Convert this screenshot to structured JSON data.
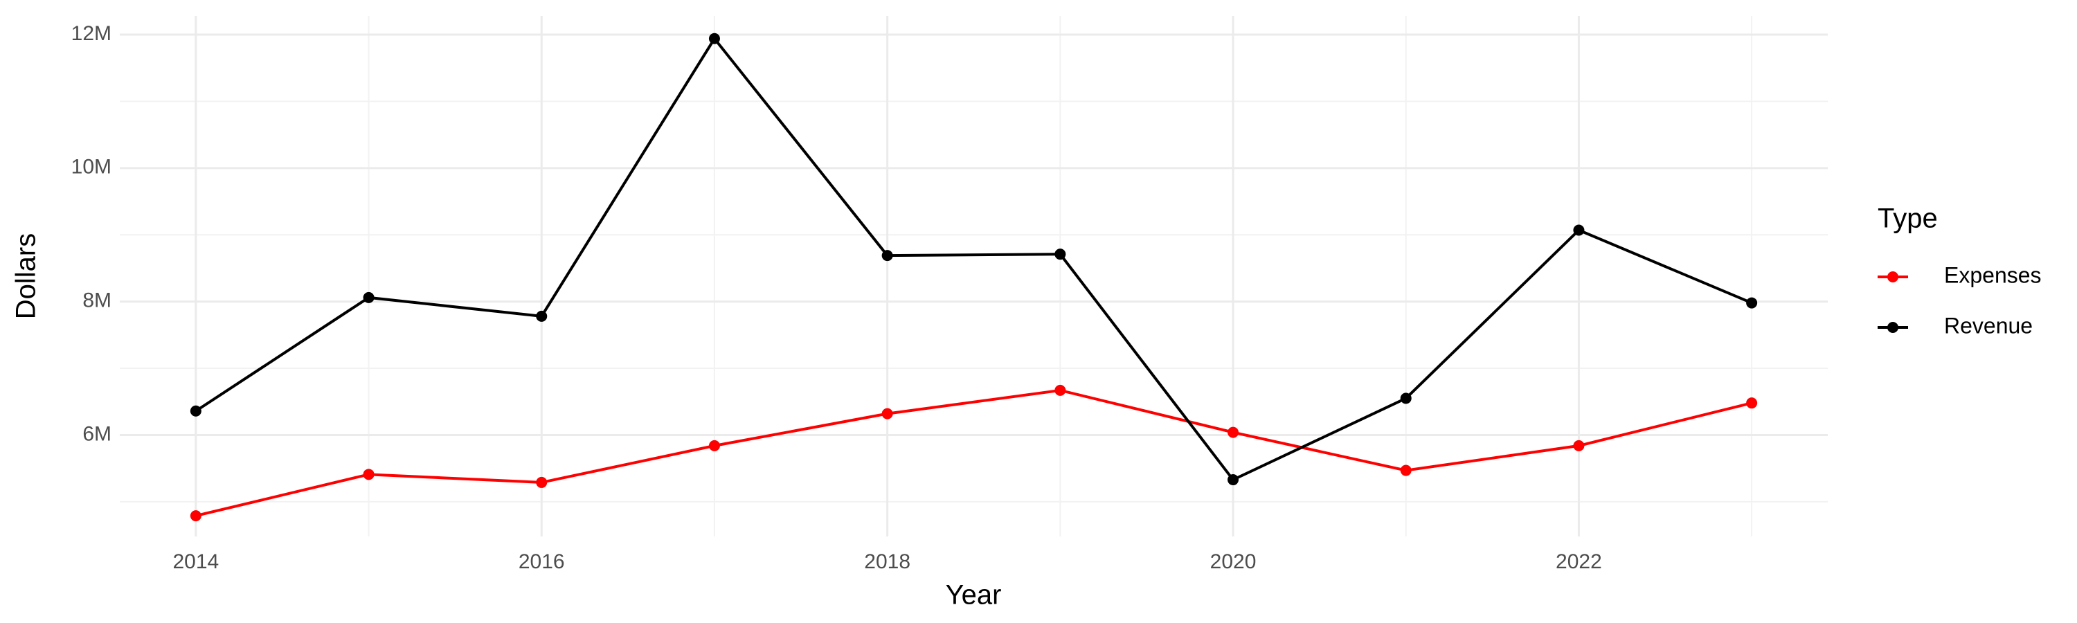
{
  "chart_data": {
    "type": "line",
    "x_label": "Year",
    "y_label": "Dollars",
    "x": [
      2014,
      2015,
      2016,
      2017,
      2018,
      2019,
      2020,
      2021,
      2022,
      2023
    ],
    "series": [
      {
        "name": "Expenses",
        "color": "#ff0000",
        "values": [
          4790000,
          5410000,
          5290000,
          5840000,
          6320000,
          6670000,
          6040000,
          5470000,
          5840000,
          6480000
        ]
      },
      {
        "name": "Revenue",
        "color": "#000000",
        "values": [
          6360000,
          8060000,
          7780000,
          11940000,
          8690000,
          8710000,
          5330000,
          6550000,
          9070000,
          7980000
        ]
      }
    ],
    "legend_title": "Type",
    "legend": "right",
    "xlim": [
      2013.56,
      2023.44
    ],
    "xticks": [
      2014,
      2016,
      2018,
      2020,
      2022
    ],
    "ylim": [
      4480000,
      12280000
    ],
    "yticks": [
      {
        "value": 6000000,
        "label": "6M"
      },
      {
        "value": 8000000,
        "label": "8M"
      },
      {
        "value": 10000000,
        "label": "10M"
      },
      {
        "value": 12000000,
        "label": "12M"
      }
    ],
    "grid": true
  }
}
